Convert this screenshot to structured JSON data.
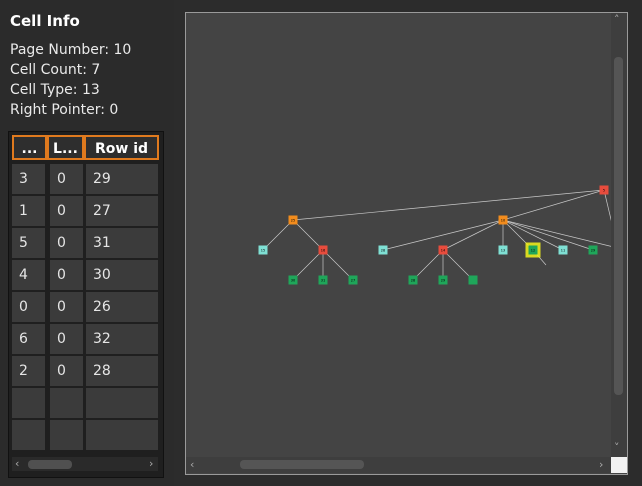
{
  "panel": {
    "title": "Cell Info",
    "page_number": "Page Number: 10",
    "cell_count": "Cell Count: 7",
    "cell_type": "Cell Type: 13",
    "right_pointer": "Right Pointer: 0"
  },
  "table": {
    "headers": [
      "...",
      "L...",
      "Row id"
    ],
    "rows": [
      [
        "3",
        "0",
        "29"
      ],
      [
        "1",
        "0",
        "27"
      ],
      [
        "5",
        "0",
        "31"
      ],
      [
        "4",
        "0",
        "30"
      ],
      [
        "0",
        "0",
        "26"
      ],
      [
        "6",
        "0",
        "32"
      ],
      [
        "2",
        "0",
        "28"
      ]
    ]
  },
  "scroll": {
    "left_arrow": "‹",
    "right_arrow": "›",
    "up_arrow": "˄",
    "down_arrow": "˅"
  },
  "tree": {
    "node_labels": [
      "5",
      "25",
      "10",
      "15",
      "16",
      "28",
      "14",
      "13",
      "12",
      "11",
      "29",
      "30",
      "31",
      "27",
      "28",
      "29"
    ],
    "colors": {
      "root": "#e84c3d",
      "internal": "#f28c1d",
      "leaf_light": "#7fe0d4",
      "leaf_dark": "#1fa65a",
      "selected_glow": "#f5f51a",
      "edge": "#c8c8c8"
    }
  }
}
